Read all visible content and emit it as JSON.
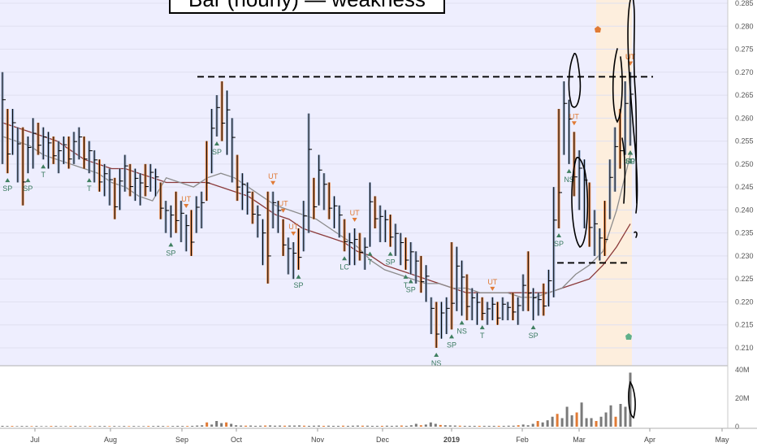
{
  "chart_data": {
    "type": "bar",
    "title": "Bar (hourly) — weakness",
    "colors": {
      "background": "#ffffff",
      "shaded_region": "#eeeefe",
      "highlight_region": "#fdeedd",
      "bar": "#000000",
      "up_fill": "#8fa6c8",
      "down_fill": "#e07a35",
      "ma_slow": "#8b3a3a",
      "ma_fast": "#8c8c8c",
      "weakness_marker": "#e07a35",
      "strength_marker": "#3f7f60",
      "strength_label": "#3a7a60",
      "volume_bar": "#7a7a7a",
      "ink": "#000000"
    },
    "price_axis": {
      "ticks": [
        "0.285",
        "0.280",
        "0.275",
        "0.270",
        "0.265",
        "0.260",
        "0.255",
        "0.250",
        "0.245",
        "0.240",
        "0.235",
        "0.230",
        "0.225",
        "0.220",
        "0.215",
        "0.210"
      ],
      "ylim": [
        0.2075,
        0.2875
      ]
    },
    "volume_axis": {
      "ticks": [
        "40M",
        "20M",
        "0"
      ],
      "ylim": [
        0,
        40
      ]
    },
    "time_axis": {
      "ticks": [
        "Jul",
        "Aug",
        "Sep",
        "Oct",
        "Nov",
        "Dec",
        "2019",
        "Feb",
        "Mar",
        "Apr",
        "May"
      ]
    },
    "reference_levels": [
      0.269,
      0.2285
    ],
    "price_bars": [
      {
        "h": 0.27,
        "l": 0.25
      },
      {
        "h": 0.262,
        "l": 0.248
      },
      {
        "h": 0.262,
        "l": 0.252
      },
      {
        "h": 0.258,
        "l": 0.246
      },
      {
        "h": 0.258,
        "l": 0.241
      },
      {
        "h": 0.256,
        "l": 0.248
      },
      {
        "h": 0.26,
        "l": 0.249
      },
      {
        "h": 0.259,
        "l": 0.252
      },
      {
        "h": 0.258,
        "l": 0.251
      },
      {
        "h": 0.257,
        "l": 0.249
      },
      {
        "h": 0.256,
        "l": 0.25
      },
      {
        "h": 0.255,
        "l": 0.248
      },
      {
        "h": 0.256,
        "l": 0.25
      },
      {
        "h": 0.256,
        "l": 0.249
      },
      {
        "h": 0.257,
        "l": 0.25
      },
      {
        "h": 0.258,
        "l": 0.251
      },
      {
        "h": 0.256,
        "l": 0.249
      },
      {
        "h": 0.255,
        "l": 0.248
      },
      {
        "h": 0.253,
        "l": 0.246
      },
      {
        "h": 0.251,
        "l": 0.244
      },
      {
        "h": 0.25,
        "l": 0.243
      },
      {
        "h": 0.249,
        "l": 0.241
      },
      {
        "h": 0.247,
        "l": 0.238
      },
      {
        "h": 0.249,
        "l": 0.24
      },
      {
        "h": 0.252,
        "l": 0.244
      },
      {
        "h": 0.25,
        "l": 0.243
      },
      {
        "h": 0.249,
        "l": 0.242
      },
      {
        "h": 0.248,
        "l": 0.241
      },
      {
        "h": 0.25,
        "l": 0.243
      },
      {
        "h": 0.25,
        "l": 0.244
      },
      {
        "h": 0.249,
        "l": 0.243
      },
      {
        "h": 0.246,
        "l": 0.238
      },
      {
        "h": 0.242,
        "l": 0.235
      },
      {
        "h": 0.241,
        "l": 0.234
      },
      {
        "h": 0.244,
        "l": 0.235
      },
      {
        "h": 0.242,
        "l": 0.233
      },
      {
        "h": 0.239,
        "l": 0.231
      },
      {
        "h": 0.24,
        "l": 0.23
      },
      {
        "h": 0.243,
        "l": 0.235
      },
      {
        "h": 0.244,
        "l": 0.236
      },
      {
        "h": 0.255,
        "l": 0.242
      },
      {
        "h": 0.262,
        "l": 0.248
      },
      {
        "h": 0.265,
        "l": 0.256
      },
      {
        "h": 0.268,
        "l": 0.255
      },
      {
        "h": 0.266,
        "l": 0.252
      },
      {
        "h": 0.26,
        "l": 0.246
      },
      {
        "h": 0.252,
        "l": 0.242
      },
      {
        "h": 0.248,
        "l": 0.24
      },
      {
        "h": 0.246,
        "l": 0.239
      },
      {
        "h": 0.244,
        "l": 0.237
      },
      {
        "h": 0.241,
        "l": 0.234
      },
      {
        "h": 0.238,
        "l": 0.228
      },
      {
        "h": 0.244,
        "l": 0.224
      },
      {
        "h": 0.244,
        "l": 0.236
      },
      {
        "h": 0.242,
        "l": 0.235
      },
      {
        "h": 0.238,
        "l": 0.23
      },
      {
        "h": 0.234,
        "l": 0.226
      },
      {
        "h": 0.233,
        "l": 0.225
      },
      {
        "h": 0.236,
        "l": 0.227
      },
      {
        "h": 0.242,
        "l": 0.231
      },
      {
        "h": 0.261,
        "l": 0.235
      },
      {
        "h": 0.247,
        "l": 0.238
      },
      {
        "h": 0.252,
        "l": 0.241
      },
      {
        "h": 0.248,
        "l": 0.24
      },
      {
        "h": 0.246,
        "l": 0.238
      },
      {
        "h": 0.243,
        "l": 0.236
      },
      {
        "h": 0.241,
        "l": 0.234
      },
      {
        "h": 0.238,
        "l": 0.231
      },
      {
        "h": 0.235,
        "l": 0.228
      },
      {
        "h": 0.236,
        "l": 0.228
      },
      {
        "h": 0.235,
        "l": 0.229
      },
      {
        "h": 0.234,
        "l": 0.227
      },
      {
        "h": 0.246,
        "l": 0.232
      },
      {
        "h": 0.243,
        "l": 0.236
      },
      {
        "h": 0.241,
        "l": 0.233
      },
      {
        "h": 0.24,
        "l": 0.233
      },
      {
        "h": 0.239,
        "l": 0.232
      },
      {
        "h": 0.237,
        "l": 0.23
      },
      {
        "h": 0.235,
        "l": 0.228
      },
      {
        "h": 0.234,
        "l": 0.227
      },
      {
        "h": 0.233,
        "l": 0.226
      },
      {
        "h": 0.231,
        "l": 0.224
      },
      {
        "h": 0.23,
        "l": 0.222
      },
      {
        "h": 0.228,
        "l": 0.22
      },
      {
        "h": 0.221,
        "l": 0.213
      },
      {
        "h": 0.22,
        "l": 0.21
      },
      {
        "h": 0.22,
        "l": 0.212
      },
      {
        "h": 0.221,
        "l": 0.213
      },
      {
        "h": 0.233,
        "l": 0.214
      },
      {
        "h": 0.232,
        "l": 0.218
      },
      {
        "h": 0.229,
        "l": 0.217
      },
      {
        "h": 0.226,
        "l": 0.216
      },
      {
        "h": 0.223,
        "l": 0.216
      },
      {
        "h": 0.222,
        "l": 0.215
      },
      {
        "h": 0.221,
        "l": 0.216
      },
      {
        "h": 0.22,
        "l": 0.215
      },
      {
        "h": 0.221,
        "l": 0.216
      },
      {
        "h": 0.22,
        "l": 0.215
      },
      {
        "h": 0.221,
        "l": 0.216
      },
      {
        "h": 0.22,
        "l": 0.216
      },
      {
        "h": 0.222,
        "l": 0.216
      },
      {
        "h": 0.221,
        "l": 0.215
      },
      {
        "h": 0.226,
        "l": 0.218
      },
      {
        "h": 0.231,
        "l": 0.218
      },
      {
        "h": 0.223,
        "l": 0.216
      },
      {
        "h": 0.222,
        "l": 0.217
      },
      {
        "h": 0.224,
        "l": 0.217
      },
      {
        "h": 0.227,
        "l": 0.219
      },
      {
        "h": 0.245,
        "l": 0.221
      },
      {
        "h": 0.262,
        "l": 0.236
      },
      {
        "h": 0.268,
        "l": 0.252
      },
      {
        "h": 0.264,
        "l": 0.25
      },
      {
        "h": 0.257,
        "l": 0.243
      },
      {
        "h": 0.253,
        "l": 0.24
      },
      {
        "h": 0.251,
        "l": 0.236
      },
      {
        "h": 0.246,
        "l": 0.232
      },
      {
        "h": 0.24,
        "l": 0.23
      },
      {
        "h": 0.236,
        "l": 0.229
      },
      {
        "h": 0.242,
        "l": 0.23
      },
      {
        "h": 0.251,
        "l": 0.238
      },
      {
        "h": 0.258,
        "l": 0.244
      },
      {
        "h": 0.262,
        "l": 0.249
      },
      {
        "h": 0.268,
        "l": 0.252
      },
      {
        "h": 0.27,
        "l": 0.254
      }
    ],
    "ma_slow": [
      0.259,
      0.258,
      0.257,
      0.256,
      0.255,
      0.253,
      0.251,
      0.25,
      0.249,
      0.249,
      0.248,
      0.247,
      0.246,
      0.246,
      0.246,
      0.246,
      0.245,
      0.244,
      0.243,
      0.241,
      0.239,
      0.238,
      0.236,
      0.235,
      0.234,
      0.233,
      0.231,
      0.23,
      0.228,
      0.227,
      0.226,
      0.225,
      0.224,
      0.223,
      0.222,
      0.222,
      0.222,
      0.222,
      0.222,
      0.222,
      0.222,
      0.223,
      0.224,
      0.225,
      0.228,
      0.232,
      0.237
    ],
    "ma_fast": [
      0.256,
      0.255,
      0.254,
      0.252,
      0.251,
      0.25,
      0.249,
      0.248,
      0.246,
      0.245,
      0.243,
      0.242,
      0.247,
      0.246,
      0.245,
      0.247,
      0.248,
      0.247,
      0.245,
      0.243,
      0.241,
      0.24,
      0.239,
      0.238,
      0.236,
      0.234,
      0.232,
      0.229,
      0.227,
      0.226,
      0.225,
      0.224,
      0.224,
      0.223,
      0.223,
      0.222,
      0.222,
      0.222,
      0.221,
      0.221,
      0.222,
      0.223,
      0.226,
      0.228,
      0.231,
      0.24,
      0.252
    ],
    "signals": [
      {
        "label": "SP",
        "kind": "strength",
        "bar": 1
      },
      {
        "label": "SP",
        "kind": "strength",
        "bar": 5
      },
      {
        "label": "T",
        "kind": "strength",
        "bar": 8
      },
      {
        "label": "T",
        "kind": "strength",
        "bar": 17
      },
      {
        "label": "SP",
        "kind": "strength",
        "bar": 33
      },
      {
        "label": "SP",
        "kind": "strength",
        "bar": 42
      },
      {
        "label": "UT",
        "kind": "weakness",
        "bar": 36
      },
      {
        "label": "UT",
        "kind": "weakness",
        "bar": 53
      },
      {
        "label": "UT",
        "kind": "weakness",
        "bar": 55
      },
      {
        "label": "UT",
        "kind": "weakness",
        "bar": 57
      },
      {
        "label": "SP",
        "kind": "strength",
        "bar": 58
      },
      {
        "label": "UT",
        "kind": "weakness",
        "bar": 69
      },
      {
        "label": "LC",
        "kind": "strength",
        "bar": 67
      },
      {
        "label": "T",
        "kind": "strength",
        "bar": 72
      },
      {
        "label": "SP",
        "kind": "strength",
        "bar": 76
      },
      {
        "label": "T",
        "kind": "strength",
        "bar": 79
      },
      {
        "label": "UT",
        "kind": "weakness",
        "bar": 96
      },
      {
        "label": "NS",
        "kind": "strength",
        "bar": 85
      },
      {
        "label": "SP",
        "kind": "strength",
        "bar": 80
      },
      {
        "label": "SP",
        "kind": "strength",
        "bar": 88
      },
      {
        "label": "NS",
        "kind": "strength",
        "bar": 90
      },
      {
        "label": "T",
        "kind": "strength",
        "bar": 94
      },
      {
        "label": "SP",
        "kind": "strength",
        "bar": 104
      },
      {
        "label": "UT",
        "kind": "weakness",
        "bar": 112
      },
      {
        "label": "SP",
        "kind": "strength",
        "bar": 109
      },
      {
        "label": "NS",
        "kind": "strength",
        "bar": 111
      },
      {
        "label": "SP",
        "kind": "strength",
        "bar": 126
      },
      {
        "label": "LC",
        "kind": "strength",
        "bar": 131
      },
      {
        "label": "UT",
        "kind": "weakness",
        "bar": 135
      },
      {
        "label": "UT",
        "kind": "weakness",
        "bar": 140
      },
      {
        "label": "T",
        "kind": "strength",
        "bar": 140
      },
      {
        "label": "LC",
        "kind": "strength",
        "bar": 160
      },
      {
        "label": "SP",
        "kind": "strength",
        "bar": 164
      },
      {
        "label": "UT",
        "kind": "weakness",
        "bar": 172
      },
      {
        "label": "SP",
        "kind": "strength",
        "bar": 184
      },
      {
        "label": "SP",
        "kind": "strength",
        "bar": 180
      }
    ],
    "volume": [
      0.6,
      0.5,
      0.5,
      0.4,
      0.5,
      0.5,
      0.4,
      0.5,
      0.4,
      0.4,
      0.5,
      0.5,
      0.4,
      0.4,
      0.5,
      0.5,
      0.4,
      0.4,
      0.5,
      0.4,
      0.5,
      0.5,
      0.4,
      0.5,
      0.4,
      0.5,
      0.4,
      0.5,
      0.4,
      0.4,
      0.5,
      0.5,
      0.6,
      0.5,
      0.4,
      0.5,
      0.6,
      0.5,
      0.5,
      0.6,
      0.8,
      1.0,
      3.0,
      1.5,
      4.0,
      2.5,
      3.0,
      2.0,
      1.0,
      0.8,
      0.7,
      0.8,
      0.6,
      0.7,
      0.8,
      0.9,
      0.7,
      0.8,
      0.7,
      0.8,
      0.8,
      0.9,
      0.7,
      0.6,
      0.7,
      0.8,
      0.6,
      0.7,
      0.6,
      0.6,
      0.7,
      0.6,
      0.7,
      0.8,
      0.7,
      0.7,
      0.6,
      0.6,
      0.6,
      0.7,
      0.6,
      0.7,
      0.8,
      0.6,
      1.0,
      2.0,
      1.0,
      1.5,
      3.0,
      2.0,
      1.2,
      1.0,
      0.9,
      0.8,
      0.7,
      0.6,
      0.6,
      0.6,
      0.6,
      0.6,
      0.6,
      0.6,
      0.6,
      0.6,
      0.7,
      0.7,
      1.0,
      1.5,
      1.0,
      2.0,
      4.0,
      3.0,
      4.5,
      7.0,
      9.0,
      6.0,
      14.0,
      8.0,
      10.0,
      17.0,
      6.0,
      6.0,
      4.0,
      7.0,
      10.0,
      15.0,
      7.0,
      16.0,
      14.0,
      38.0
    ]
  }
}
